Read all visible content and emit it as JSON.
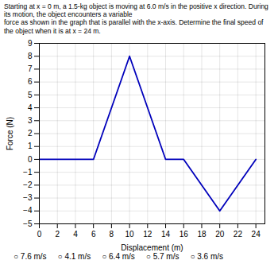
{
  "chart_data": {
    "type": "line",
    "title": "Starting at x = 0 m, a 1.5-kg object is moving at 6.0 m/s in the positive x direction. During its motion, the object encounters a variable",
    "subtitle": "force as shown in the graph that is parallel with the x-axis. Determine the final speed of the object when it is at x = 24 m.",
    "xlabel": "Displacement (m)",
    "ylabel": "Force (N)",
    "x": [
      0,
      6,
      6,
      10,
      14,
      16,
      20,
      24
    ],
    "values": [
      0,
      0,
      0,
      8,
      0,
      0,
      -4,
      0
    ],
    "color": "#0000bb",
    "xlim": [
      0,
      25
    ],
    "ylim": [
      -5,
      9
    ],
    "xticks": [
      0,
      2,
      4,
      6,
      8,
      10,
      12,
      14,
      16,
      18,
      20,
      22,
      24
    ],
    "yticks": [
      -5,
      -4,
      -3,
      -2,
      -1,
      0,
      1,
      2,
      3,
      4,
      5,
      6,
      7,
      8,
      9
    ],
    "grid": true,
    "annotations": [
      "○ 7.6 m/s",
      "○ 4.1 m/s",
      "○ 6.4 m/s",
      "○ 5.7 m/s",
      "○ 3.6 m/s"
    ]
  }
}
